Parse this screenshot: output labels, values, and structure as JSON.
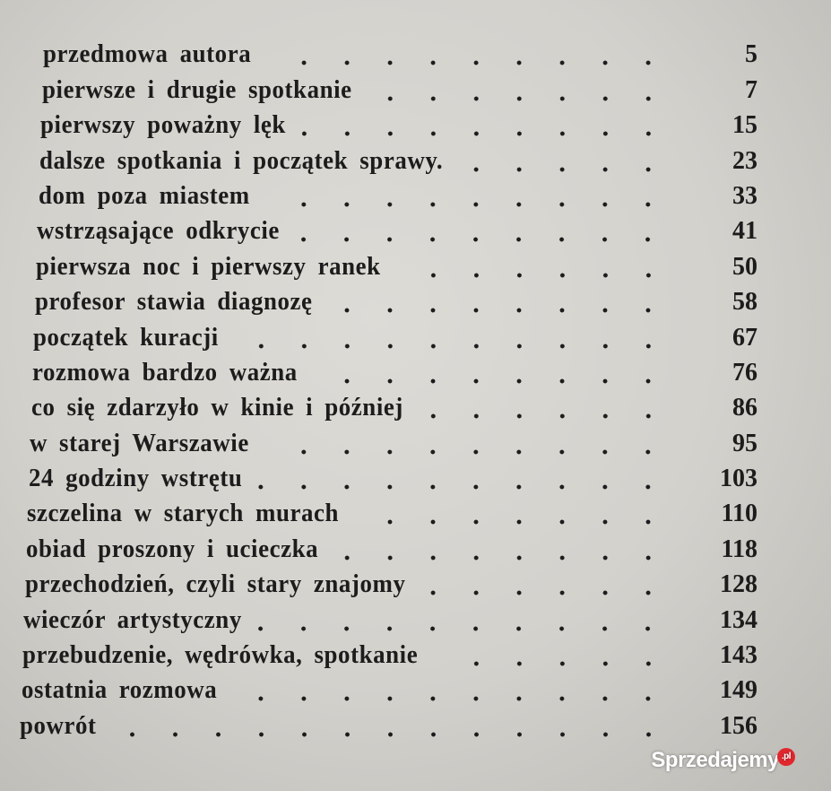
{
  "toc": [
    {
      "title": "przedmowa autora",
      "page": "5"
    },
    {
      "title": "pierwsze i drugie spotkanie",
      "page": "7"
    },
    {
      "title": "pierwszy poważny lęk",
      "page": "15"
    },
    {
      "title": "dalsze spotkania i początek sprawy.",
      "page": "23"
    },
    {
      "title": "dom poza miastem",
      "page": "33"
    },
    {
      "title": "wstrząsające odkrycie",
      "page": "41"
    },
    {
      "title": "pierwsza noc i pierwszy ranek",
      "page": "50"
    },
    {
      "title": "profesor stawia diagnozę",
      "page": "58"
    },
    {
      "title": "początek kuracji",
      "page": "67"
    },
    {
      "title": "rozmowa bardzo ważna",
      "page": "76"
    },
    {
      "title": "co się zdarzyło w kinie i później",
      "page": "86"
    },
    {
      "title": "w starej Warszawie",
      "page": "95"
    },
    {
      "title": "24 godziny wstrętu",
      "page": "103"
    },
    {
      "title": "szczelina w starych murach",
      "page": "110"
    },
    {
      "title": "obiad proszony i ucieczka",
      "page": "118"
    },
    {
      "title": "przechodzień, czyli stary znajomy",
      "page": "128"
    },
    {
      "title": "wieczór artystyczny",
      "page": "134"
    },
    {
      "title": "przebudzenie, wędrówka, spotkanie",
      "page": "143"
    },
    {
      "title": "ostatnia rozmowa",
      "page": "149"
    },
    {
      "title": "powrót",
      "page": "156"
    }
  ],
  "watermark": {
    "text": "Sprzedajemy",
    "suffix": ".pl"
  }
}
